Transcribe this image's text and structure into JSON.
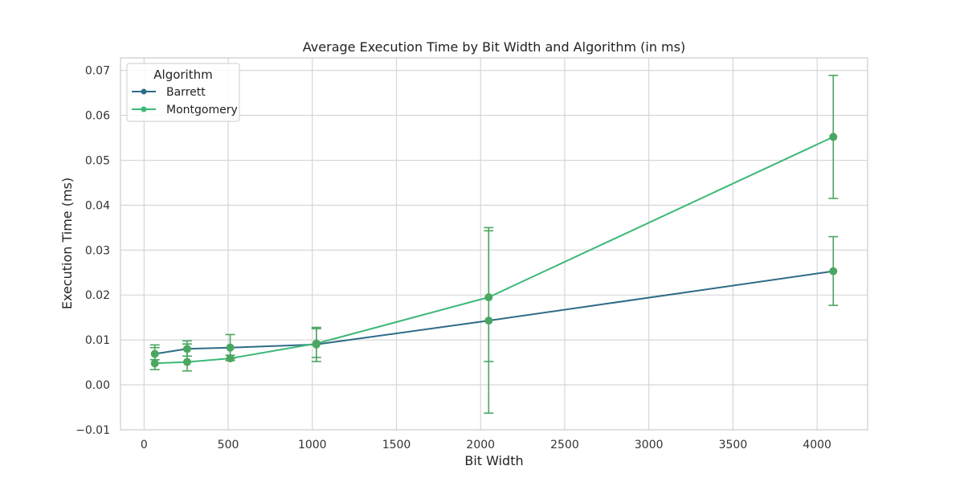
{
  "chart_data": {
    "type": "line",
    "title": "Average Execution Time by Bit Width and Algorithm (in ms)",
    "xlabel": "Bit Width",
    "ylabel": "Execution Time (ms)",
    "xlim": [
      -140,
      4300
    ],
    "ylim": [
      -0.01,
      0.0728
    ],
    "x_ticks": [
      0,
      500,
      1000,
      1500,
      2000,
      2500,
      3000,
      3500,
      4000
    ],
    "y_ticks": [
      -0.01,
      0.0,
      0.01,
      0.02,
      0.03,
      0.04,
      0.05,
      0.06,
      0.07
    ],
    "x_tick_labels": [
      "0",
      "500",
      "1000",
      "1500",
      "2000",
      "2500",
      "3000",
      "3500",
      "4000"
    ],
    "y_tick_labels": [
      "−0.01",
      "0.00",
      "0.01",
      "0.02",
      "0.03",
      "0.04",
      "0.05",
      "0.06",
      "0.07"
    ],
    "grid": true,
    "legend": {
      "title": "Algorithm",
      "position": "top-left"
    },
    "marker_color": "#4aa661",
    "series": [
      {
        "name": "Barrett",
        "color": "#2e6b87",
        "x": [
          64,
          256,
          512,
          1024,
          2048,
          4096
        ],
        "y": [
          0.0069,
          0.008,
          0.0083,
          0.009,
          0.0143,
          0.0253
        ],
        "err_low": [
          0.0056,
          0.0064,
          0.0058,
          0.0061,
          -0.0063,
          0.0177
        ],
        "err_high": [
          0.0083,
          0.0098,
          0.0112,
          0.0125,
          0.035,
          0.033
        ]
      },
      {
        "name": "Montgomery",
        "color": "#3cb878",
        "x": [
          64,
          256,
          512,
          1024,
          2048,
          4096
        ],
        "y": [
          0.0048,
          0.0051,
          0.0059,
          0.0092,
          0.0195,
          0.0552
        ],
        "err_low": [
          0.0034,
          0.0031,
          0.0054,
          0.0052,
          0.0052,
          0.0415
        ],
        "err_high": [
          0.0089,
          0.0091,
          0.0066,
          0.0128,
          0.0343,
          0.0689
        ]
      }
    ]
  }
}
